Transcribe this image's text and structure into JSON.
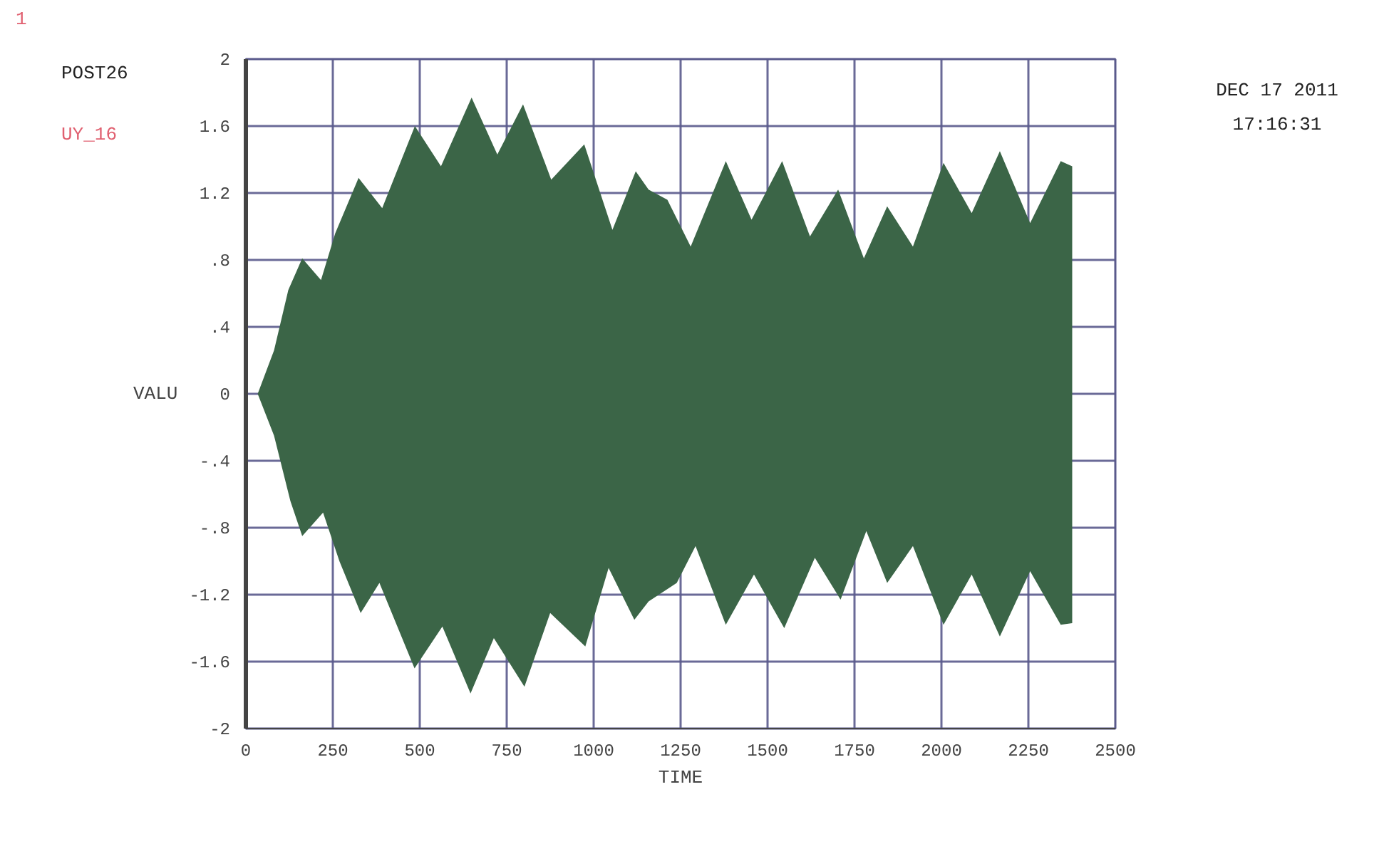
{
  "chart_data": {
    "type": "area",
    "xlabel": "TIME",
    "ylabel": "VALU",
    "annotations": [
      "1",
      "POST26",
      "UY_16",
      "DEC 17 2011",
      "17:16:31"
    ],
    "series": [
      {
        "color": "#3b6547",
        "x": [
          34,
          81,
          122,
          162,
          216,
          257,
          324,
          392,
          486,
          561,
          649,
          723,
          797,
          878,
          973,
          1054,
          1121,
          1158,
          1212,
          1279,
          1380,
          1454,
          1542,
          1622,
          1703,
          1777,
          1844,
          1918,
          2006,
          2087,
          2168,
          2255,
          2343,
          2376
        ],
        "values": [
          0,
          0.26,
          0.62,
          0.81,
          0.68,
          0.96,
          1.29,
          1.11,
          1.6,
          1.36,
          1.77,
          1.43,
          1.73,
          1.28,
          1.49,
          0.98,
          1.33,
          1.22,
          1.16,
          0.88,
          1.39,
          1.04,
          1.39,
          0.94,
          1.22,
          0.81,
          1.12,
          0.88,
          1.38,
          1.08,
          1.45,
          1.02,
          1.39,
          1.36
        ]
      },
      {
        "color": "#3b6547",
        "x": [
          34,
          81,
          128,
          162,
          222,
          269,
          330,
          384,
          485,
          565,
          646,
          713,
          801,
          875,
          976,
          1043,
          1117,
          1158,
          1239,
          1293,
          1380,
          1461,
          1548,
          1636,
          1710,
          1784,
          1844,
          1918,
          2006,
          2087,
          2168,
          2255,
          2343,
          2376
        ],
        "values": [
          0,
          -0.25,
          -0.64,
          -0.85,
          -0.71,
          -1.0,
          -1.31,
          -1.13,
          -1.64,
          -1.39,
          -1.79,
          -1.46,
          -1.75,
          -1.31,
          -1.51,
          -1.04,
          -1.35,
          -1.24,
          -1.13,
          -0.91,
          -1.38,
          -1.08,
          -1.4,
          -0.98,
          -1.23,
          -0.82,
          -1.13,
          -0.91,
          -1.38,
          -1.08,
          -1.45,
          -1.06,
          -1.38,
          -1.37
        ]
      }
    ],
    "xlim": [
      0,
      2500
    ],
    "xticks": [
      0,
      250,
      500,
      750,
      1000,
      1250,
      1500,
      1750,
      2000,
      2250,
      2500
    ],
    "ylim": [
      -2,
      2
    ],
    "yticks": [
      2,
      1.6,
      1.2,
      {
        "value": 0.8,
        "label": ".8"
      },
      {
        "value": 0.4,
        "label": ".4"
      },
      0,
      {
        "value": -0.4,
        "label": "-.4"
      },
      {
        "value": -0.8,
        "label": "-.8"
      },
      -1.2,
      -1.6,
      -2
    ],
    "grid": true
  }
}
